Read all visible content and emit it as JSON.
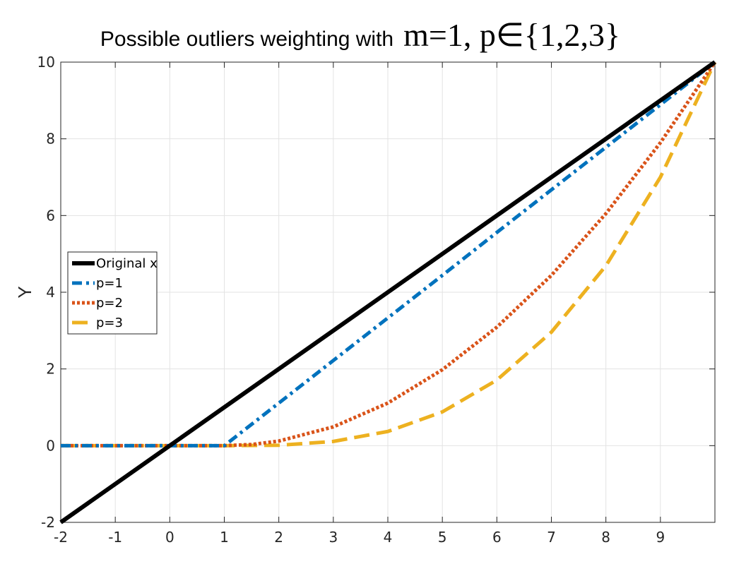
{
  "title": {
    "text": "Possible outliers weighting with",
    "math": "m=1,  p∈{1,2,3}"
  },
  "chart_data": {
    "type": "line",
    "title": "Possible outliers weighting with m=1, p∈{1,2,3}",
    "xlabel": "",
    "ylabel": "Y",
    "xlim": [
      -2,
      10
    ],
    "ylim": [
      -2,
      10
    ],
    "x_ticks": [
      -2,
      -1,
      0,
      1,
      2,
      3,
      4,
      5,
      6,
      7,
      8,
      9
    ],
    "y_ticks": [
      -2,
      0,
      2,
      4,
      6,
      8,
      10
    ],
    "grid": true,
    "legend_position": "left-middle",
    "series": [
      {
        "name": "Original x",
        "color": "#000000",
        "style": "solid",
        "x": [
          -2,
          10
        ],
        "y": [
          -2,
          10
        ]
      },
      {
        "name": "p=1",
        "color": "#0072BD",
        "style": "dashdot",
        "x": [
          -2,
          -1,
          0,
          1,
          2,
          3,
          4,
          5,
          6,
          7,
          8,
          9,
          10
        ],
        "y": [
          0,
          0,
          0,
          0,
          1.11,
          2.22,
          3.33,
          4.44,
          5.56,
          6.67,
          7.78,
          8.89,
          10
        ]
      },
      {
        "name": "p=2",
        "color": "#D95319",
        "style": "dotted",
        "x": [
          -2,
          -1,
          0,
          1,
          1.5,
          2,
          3,
          4,
          5,
          6,
          7,
          8,
          9,
          10
        ],
        "y": [
          0,
          0,
          0,
          0,
          0.03,
          0.12,
          0.49,
          1.11,
          1.98,
          3.09,
          4.44,
          6.05,
          7.9,
          10
        ]
      },
      {
        "name": "p=3",
        "color": "#EDB120",
        "style": "dashed",
        "x": [
          -2,
          -1,
          0,
          1,
          2,
          3,
          4,
          5,
          6,
          7,
          8,
          9,
          10
        ],
        "y": [
          0,
          0,
          0,
          0,
          0.01,
          0.11,
          0.37,
          0.88,
          1.71,
          2.96,
          4.69,
          7.0,
          10
        ]
      }
    ]
  }
}
